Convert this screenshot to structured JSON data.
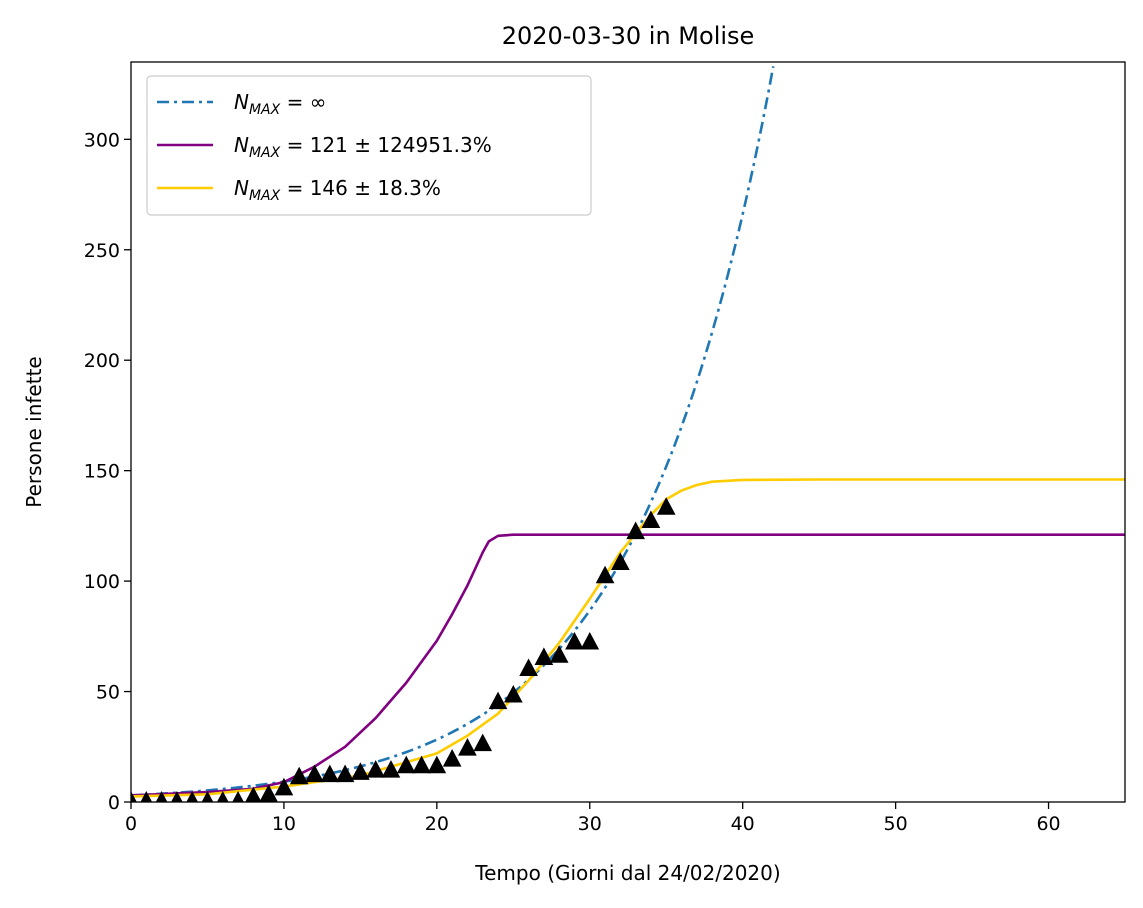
{
  "chart_data": {
    "type": "line",
    "title": "2020-03-30 in Molise",
    "xlabel": "Tempo (Giorni dal 24/02/2020)",
    "ylabel": "Persone infette",
    "xlim": [
      0,
      65
    ],
    "ylim": [
      0,
      335
    ],
    "xticks": [
      0,
      10,
      20,
      30,
      40,
      50,
      60
    ],
    "yticks": [
      0,
      50,
      100,
      150,
      200,
      250,
      300
    ],
    "grid": false,
    "legend_position": "top-left",
    "series": [
      {
        "name": "N_MAX = ∞",
        "legend": {
          "symbol": "N",
          "sub": "MAX",
          "rest": " = ∞"
        },
        "style": "dashdot",
        "color": "#1f77b4",
        "model": "exponential",
        "x": [
          0,
          5,
          10,
          15,
          20,
          25,
          30,
          35,
          38,
          40,
          42
        ],
        "y": [
          3,
          4.5,
          8,
          13.5,
          23,
          42,
          79,
          142,
          208,
          258,
          333
        ]
      },
      {
        "name": "N_MAX = 121 ± 124951.3%",
        "legend": {
          "symbol": "N",
          "sub": "MAX",
          "rest": " = 121 ± 124951.3%"
        },
        "style": "solid",
        "color": "#800080",
        "x": [
          0,
          5,
          8,
          10,
          12,
          14,
          16,
          18,
          20,
          21,
          22,
          23,
          23.4,
          24,
          25,
          30,
          40,
          50,
          65
        ],
        "y": [
          3,
          4.5,
          6,
          9,
          16,
          25,
          38,
          54,
          73,
          85,
          98,
          113,
          118,
          120.5,
          121,
          121,
          121,
          121,
          121
        ]
      },
      {
        "name": "N_MAX = 146 ± 18.3%",
        "legend": {
          "symbol": "N",
          "sub": "MAX",
          "rest": " = 146 ± 18.3%"
        },
        "style": "solid",
        "color": "#ffcc00",
        "x": [
          0,
          5,
          10,
          15,
          20,
          22,
          24,
          26,
          28,
          30,
          32,
          34,
          35,
          36,
          37,
          38,
          40,
          45,
          50,
          65
        ],
        "y": [
          2.5,
          3.5,
          7,
          12,
          22,
          30,
          40,
          55,
          72,
          92,
          113,
          130,
          137,
          141,
          143.5,
          145,
          145.8,
          146,
          146,
          146
        ]
      }
    ],
    "observations": {
      "marker": "triangle",
      "color": "#000000",
      "x": [
        0,
        1,
        2,
        3,
        4,
        5,
        6,
        7,
        8,
        9,
        10,
        11,
        12,
        13,
        14,
        15,
        16,
        17,
        18,
        19,
        20,
        21,
        22,
        23,
        24,
        25,
        26,
        27,
        28,
        29,
        30,
        31,
        32,
        33,
        34,
        35
      ],
      "y": [
        0,
        0,
        0,
        0,
        0,
        0,
        0,
        0,
        2,
        3,
        6,
        11,
        12,
        12,
        12,
        13,
        14,
        14,
        16,
        16,
        16,
        19,
        24,
        26,
        45,
        48,
        60,
        65,
        66,
        72,
        72,
        102,
        108,
        122,
        127,
        133
      ]
    }
  }
}
